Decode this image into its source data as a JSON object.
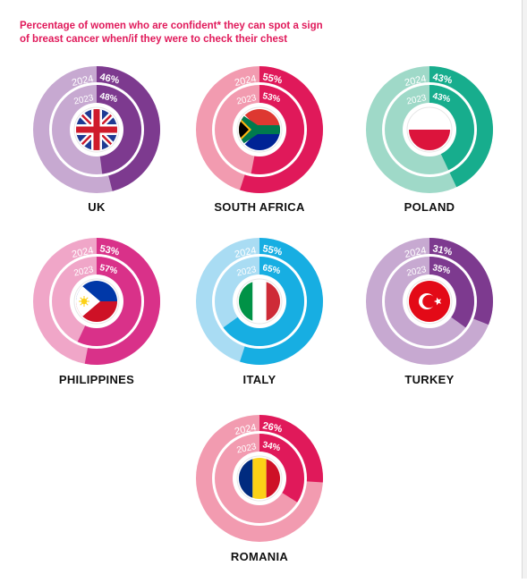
{
  "title_lines": [
    "Percentage of women who are confident* they can spot a sign",
    "of breast cancer when/if they were to check their chest"
  ],
  "chart_data": [
    {
      "type": "pie",
      "country": "UK",
      "flag": "uk-flag",
      "series": [
        {
          "name": "2024",
          "value": 46
        },
        {
          "name": "2023",
          "value": 48
        }
      ],
      "colors": {
        "strong": "#7d3a8f",
        "light": "#c7a9d1"
      }
    },
    {
      "type": "pie",
      "country": "SOUTH AFRICA",
      "flag": "south-africa-flag",
      "series": [
        {
          "name": "2024",
          "value": 55
        },
        {
          "name": "2023",
          "value": 53
        }
      ],
      "colors": {
        "strong": "#e0195a",
        "light": "#f29bb0"
      }
    },
    {
      "type": "pie",
      "country": "POLAND",
      "flag": "poland-flag",
      "series": [
        {
          "name": "2024",
          "value": 43
        },
        {
          "name": "2023",
          "value": 43
        }
      ],
      "colors": {
        "strong": "#17ad8d",
        "light": "#9fd9c8"
      }
    },
    {
      "type": "pie",
      "country": "PHILIPPINES",
      "flag": "philippines-flag",
      "series": [
        {
          "name": "2024",
          "value": 53
        },
        {
          "name": "2023",
          "value": 57
        }
      ],
      "colors": {
        "strong": "#d93189",
        "light": "#f0a6c8"
      }
    },
    {
      "type": "pie",
      "country": "ITALY",
      "flag": "italy-flag",
      "series": [
        {
          "name": "2024",
          "value": 55
        },
        {
          "name": "2023",
          "value": 65
        }
      ],
      "colors": {
        "strong": "#17aee2",
        "light": "#a9dcf3"
      }
    },
    {
      "type": "pie",
      "country": "TURKEY",
      "flag": "turkey-flag",
      "series": [
        {
          "name": "2024",
          "value": 31
        },
        {
          "name": "2023",
          "value": 35
        }
      ],
      "colors": {
        "strong": "#7d3a8f",
        "light": "#c7a9d1"
      }
    },
    {
      "type": "pie",
      "country": "ROMANIA",
      "flag": "romania-flag",
      "series": [
        {
          "name": "2024",
          "value": 26
        },
        {
          "name": "2023",
          "value": 34
        }
      ],
      "colors": {
        "strong": "#e0195a",
        "light": "#f29bb0"
      }
    }
  ]
}
